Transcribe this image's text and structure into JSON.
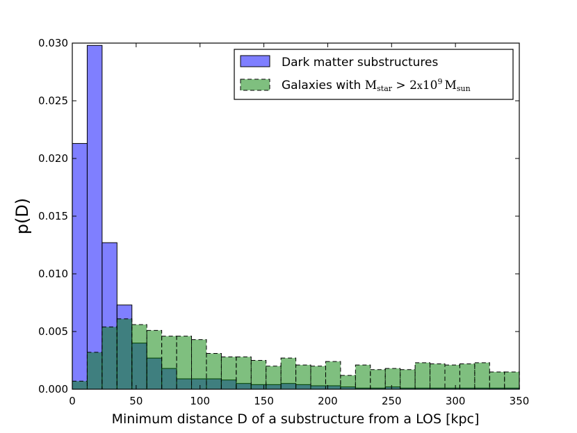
{
  "chart_data": {
    "type": "bar",
    "title": "",
    "xlabel": "Minimum distance D of a substructure from a LOS [kpc]",
    "ylabel": "p(D)",
    "xlim": [
      0,
      350
    ],
    "ylim": [
      0,
      0.03
    ],
    "grid": false,
    "legend_position": "top-right",
    "x_ticks": [
      "0",
      "50",
      "100",
      "150",
      "200",
      "250",
      "300",
      "350"
    ],
    "y_ticks": [
      "0.000",
      "0.005",
      "0.010",
      "0.015",
      "0.020",
      "0.025",
      "0.030"
    ],
    "bin_width": 11.67,
    "bin_edges_start": 0,
    "series": [
      {
        "name": "Dark matter substructures",
        "color": "#0000ff",
        "opacity": 0.5,
        "linestyle": "solid",
        "values": [
          0.0213,
          0.0298,
          0.0127,
          0.0073,
          0.004,
          0.0027,
          0.0018,
          0.0009,
          0.0009,
          0.0009,
          0.0008,
          0.0005,
          0.0004,
          0.0004,
          0.0005,
          0.0004,
          0.0003,
          0.0003,
          0.0002,
          0.0001,
          0.0001,
          0.0002,
          0.0001,
          0.0001,
          0.0001,
          0.0001,
          0.0001,
          0.0001,
          0.0001,
          0.0001
        ]
      },
      {
        "name_parts": {
          "prefix": "Galaxies with ",
          "m_star": "M",
          "m_star_sub": "star",
          "gt": " > 2",
          "times": "x",
          "ten": "10",
          "exp": "9",
          "m_sun": "M",
          "m_sun_sub": "sun"
        },
        "color": "#008000",
        "opacity": 0.5,
        "linestyle": "dashed",
        "values": [
          0.0007,
          0.0032,
          0.0054,
          0.0061,
          0.0056,
          0.0051,
          0.0046,
          0.0046,
          0.0043,
          0.0031,
          0.0028,
          0.0028,
          0.0025,
          0.002,
          0.0027,
          0.0021,
          0.002,
          0.0024,
          0.0012,
          0.0021,
          0.0017,
          0.0018,
          0.0017,
          0.0023,
          0.0022,
          0.0021,
          0.0022,
          0.0023,
          0.0015,
          0.0015
        ]
      }
    ]
  }
}
